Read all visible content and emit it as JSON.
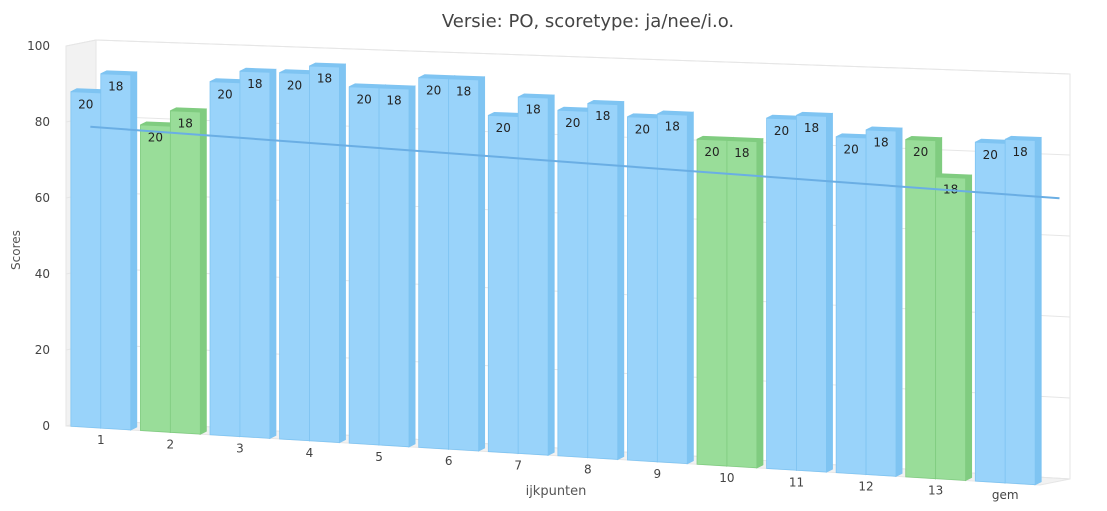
{
  "chart_data": {
    "type": "bar",
    "title": "Versie: PO, scoretype: ja/nee/i.o.",
    "xlabel": "ijkpunten",
    "ylabel": "Scores",
    "ylim": [
      0,
      100
    ],
    "yticks": [
      0,
      20,
      40,
      60,
      80,
      100
    ],
    "categories": [
      "1",
      "2",
      "3",
      "4",
      "5",
      "6",
      "7",
      "8",
      "9",
      "10",
      "11",
      "12",
      "13",
      "gem"
    ],
    "series": [
      {
        "values": [
          88,
          80,
          92,
          95,
          92,
          95,
          86,
          88,
          87,
          82,
          88,
          84,
          84,
          84
        ],
        "data_labels": [
          "20",
          "20",
          "20",
          "20",
          "20",
          "20",
          "20",
          "20",
          "20",
          "20",
          "20",
          "20",
          "20",
          "20"
        ]
      },
      {
        "values": [
          93,
          84,
          95,
          97,
          92,
          95,
          91,
          90,
          88,
          82,
          89,
          86,
          75,
          85
        ],
        "data_labels": [
          "18",
          "18",
          "18",
          "18",
          "18",
          "18",
          "18",
          "18",
          "18",
          "18",
          "18",
          "18",
          "18",
          "18"
        ]
      }
    ],
    "highlighted_categories": [
      "2",
      "10",
      "13"
    ],
    "reference_line": {
      "start": 79,
      "end": 71
    },
    "colors": {
      "bar_blue": "#99d3fa",
      "bar_blue_edge": "#7fc4f2",
      "bar_green": "#99dd99",
      "bar_green_edge": "#80cc80",
      "line": "#6aaee4",
      "grid": "#e6e6e6",
      "wall": "#f2f2f2",
      "text": "#444444",
      "label": "#222222"
    },
    "grid": true
  }
}
